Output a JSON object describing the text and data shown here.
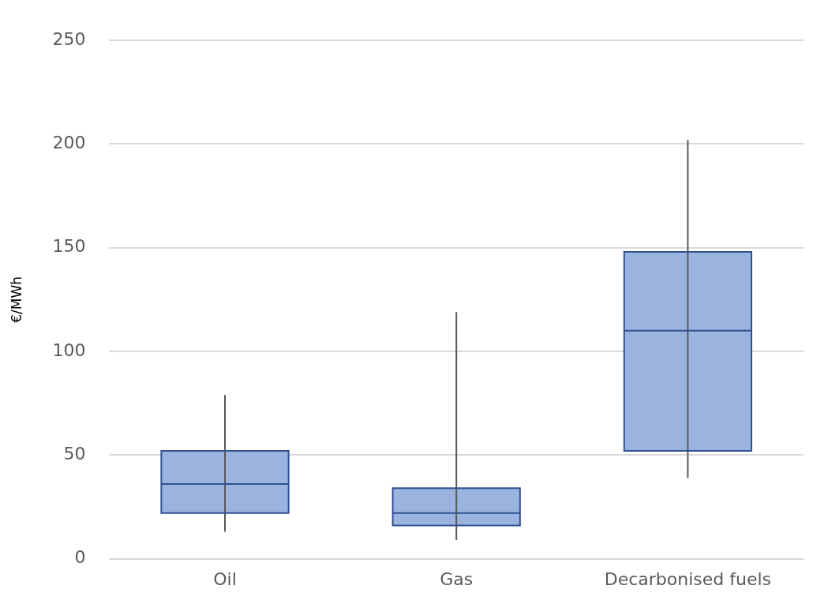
{
  "chart_data": {
    "type": "box",
    "ylabel": "€/MWh",
    "categories": [
      "Oil",
      "Gas",
      "Decarbonised fuels"
    ],
    "boxes": [
      {
        "low": 13,
        "q1": 22,
        "median": 36,
        "q3": 52,
        "high": 79
      },
      {
        "low": 9,
        "q1": 16,
        "median": 22,
        "q3": 34,
        "high": 119
      },
      {
        "low": 39,
        "q1": 52,
        "median": 110,
        "q3": 148,
        "high": 202
      }
    ],
    "color": "#9ab4df",
    "ylim": [
      0,
      250
    ],
    "yticks": [
      0,
      50,
      100,
      150,
      200,
      250
    ],
    "grid": "y",
    "legend": false
  }
}
